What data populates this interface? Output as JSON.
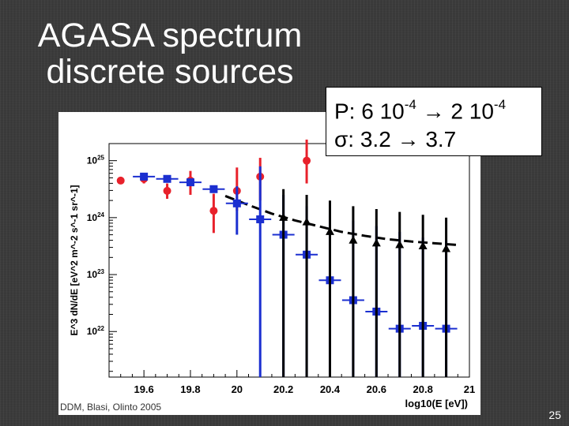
{
  "slide": {
    "title_line1": "AGASA spectrum",
    "title_line2": "discrete sources",
    "page_number": "25",
    "citation": "DDM, Blasi, Olinto 2005"
  },
  "infobox": {
    "p_label": "P: 6 10",
    "p_exp1": "-4",
    "p_arrow": "→",
    "p_mid": "2 10",
    "p_exp2": "-4",
    "sigma_label": "σ: 3.2",
    "sigma_arrow": "→",
    "sigma_end": "3.7"
  },
  "chart_data": {
    "type": "scatter",
    "xlabel": "log10(E [eV])",
    "ylabel": "E^3 dN/dE [eV^2 m^-2 s^-1 sr^-1]",
    "xlim": [
      19.45,
      21.0
    ],
    "ylim_log10": [
      21.2,
      25.3
    ],
    "log_y": true,
    "x_ticks": [
      19.6,
      19.8,
      20,
      20.2,
      20.4,
      20.6,
      20.8,
      21
    ],
    "x_tick_labels": [
      "19.6",
      "19.8",
      "20",
      "20.2",
      "20.4",
      "20.6",
      "20.8",
      "21"
    ],
    "y_ticks_log10": [
      22,
      23,
      24,
      25
    ],
    "y_tick_labels": [
      "10^22",
      "10^23",
      "10^24",
      "10^25"
    ],
    "colors": {
      "data": "#e8212b",
      "sources": "#1b2fd0",
      "model": "#000000"
    },
    "series": [
      {
        "marker": "circle",
        "color": "#e8212b",
        "points": [
          {
            "x": 19.5,
            "log_y": 24.65,
            "lo": 24.65,
            "hi": 24.65
          },
          {
            "x": 19.6,
            "log_y": 24.68,
            "lo": 24.6,
            "hi": 24.78
          },
          {
            "x": 19.7,
            "log_y": 24.47,
            "lo": 24.33,
            "hi": 24.6
          },
          {
            "x": 19.8,
            "log_y": 24.65,
            "lo": 24.4,
            "hi": 24.82
          },
          {
            "x": 19.9,
            "log_y": 24.12,
            "lo": 23.73,
            "hi": 24.42
          },
          {
            "x": 20.0,
            "log_y": 24.47,
            "lo": 24.12,
            "hi": 24.88
          },
          {
            "x": 20.1,
            "log_y": 24.72,
            "lo": 24.3,
            "hi": 25.05
          },
          {
            "x": 20.3,
            "log_y": 25.0,
            "lo": 24.6,
            "hi": 25.37
          }
        ]
      },
      {
        "marker": "square",
        "color": "#1b2fd0",
        "points": [
          {
            "x": 19.6,
            "log_y": 24.72,
            "lo": 24.72,
            "hi": 24.72
          },
          {
            "x": 19.7,
            "log_y": 24.68,
            "lo": 24.68,
            "hi": 24.68
          },
          {
            "x": 19.8,
            "log_y": 24.62,
            "lo": 24.62,
            "hi": 24.62
          },
          {
            "x": 19.9,
            "log_y": 24.5,
            "lo": 24.5,
            "hi": 24.5
          },
          {
            "x": 20.0,
            "log_y": 24.25,
            "lo": 23.7,
            "hi": 24.55
          },
          {
            "x": 20.1,
            "log_y": 23.97,
            "lo": 21.2,
            "hi": 24.9
          },
          {
            "x": 20.2,
            "log_y": 23.7,
            "lo": 21.2,
            "hi": 24.4
          },
          {
            "x": 20.3,
            "log_y": 23.35,
            "lo": 21.2,
            "hi": 24.2
          },
          {
            "x": 20.4,
            "log_y": 22.9,
            "lo": 21.2,
            "hi": 24.05
          },
          {
            "x": 20.5,
            "log_y": 22.55,
            "lo": 21.2,
            "hi": 23.95
          },
          {
            "x": 20.6,
            "log_y": 22.35,
            "lo": 21.2,
            "hi": 23.85
          },
          {
            "x": 20.7,
            "log_y": 22.05,
            "lo": 21.2,
            "hi": 23.75
          },
          {
            "x": 20.8,
            "log_y": 22.1,
            "lo": 21.2,
            "hi": 23.65
          },
          {
            "x": 20.9,
            "log_y": 22.05,
            "lo": 21.2,
            "hi": 23.6
          }
        ]
      },
      {
        "marker": "triangle",
        "color": "#000000",
        "points": [
          {
            "x": 20.2,
            "log_y": 24.0,
            "lo": 21.2,
            "hi": 24.5
          },
          {
            "x": 20.3,
            "log_y": 23.92,
            "lo": 21.2,
            "hi": 24.4
          },
          {
            "x": 20.4,
            "log_y": 23.75,
            "lo": 21.2,
            "hi": 24.3
          },
          {
            "x": 20.5,
            "log_y": 23.6,
            "lo": 21.2,
            "hi": 24.2
          },
          {
            "x": 20.6,
            "log_y": 23.55,
            "lo": 21.2,
            "hi": 24.15
          },
          {
            "x": 20.7,
            "log_y": 23.52,
            "lo": 21.2,
            "hi": 24.1
          },
          {
            "x": 20.8,
            "log_y": 23.5,
            "lo": 21.2,
            "hi": 24.05
          },
          {
            "x": 20.9,
            "log_y": 23.45,
            "lo": 21.2,
            "hi": 24.0
          }
        ]
      }
    ],
    "model_curve": [
      {
        "x": 19.95,
        "log_y": 24.38
      },
      {
        "x": 20.05,
        "log_y": 24.22
      },
      {
        "x": 20.15,
        "log_y": 24.07
      },
      {
        "x": 20.25,
        "log_y": 23.95
      },
      {
        "x": 20.35,
        "log_y": 23.85
      },
      {
        "x": 20.45,
        "log_y": 23.75
      },
      {
        "x": 20.55,
        "log_y": 23.68
      },
      {
        "x": 20.65,
        "log_y": 23.62
      },
      {
        "x": 20.75,
        "log_y": 23.58
      },
      {
        "x": 20.85,
        "log_y": 23.55
      },
      {
        "x": 20.95,
        "log_y": 23.52
      }
    ]
  }
}
